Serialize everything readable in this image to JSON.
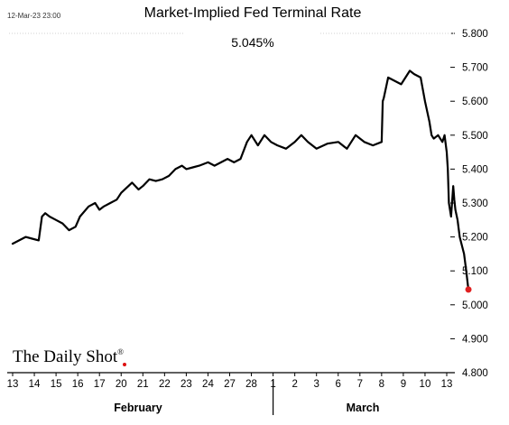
{
  "chart_data": {
    "type": "line",
    "title": "Market-Implied Fed Terminal Rate",
    "timestamp": "12-Mar-23 23:00",
    "annotation": "5.045%",
    "brand": "The Daily Shot",
    "brand_mark": "®",
    "xlabel": "",
    "ylabel": "",
    "ylim": [
      4.8,
      5.8
    ],
    "yticks": [
      4.8,
      4.9,
      5.0,
      5.1,
      5.2,
      5.3,
      5.4,
      5.5,
      5.6,
      5.7,
      5.8
    ],
    "ytick_labels": [
      "4.800",
      "4.900",
      "5.000",
      "5.100",
      "5.200",
      "5.300",
      "5.400",
      "5.500",
      "5.600",
      "5.700",
      "5.800"
    ],
    "xtick_labels": [
      "13",
      "14",
      "15",
      "16",
      "17",
      "20",
      "21",
      "22",
      "23",
      "24",
      "27",
      "28",
      "1",
      "2",
      "3",
      "6",
      "7",
      "8",
      "9",
      "10",
      "13"
    ],
    "month_labels": [
      "February",
      "March"
    ],
    "grid": false,
    "series": [
      {
        "color": "#000000",
        "x": [
          0,
          0.3,
          0.6,
          0.9,
          1.2,
          1.35,
          1.5,
          1.7,
          2.0,
          2.3,
          2.6,
          2.9,
          3.1,
          3.5,
          3.8,
          4.0,
          4.2,
          4.5,
          4.8,
          5.0,
          5.5,
          5.8,
          6.0,
          6.3,
          6.6,
          6.9,
          7.2,
          7.5,
          7.8,
          8.0,
          8.3,
          8.6,
          9.0,
          9.3,
          9.6,
          9.9,
          10.2,
          10.5,
          10.8,
          11.0,
          11.3,
          11.6,
          11.9,
          12.2,
          12.6,
          13.0,
          13.3,
          13.6,
          14.0,
          14.5,
          15.0,
          15.4,
          15.8,
          16.2,
          16.6,
          17.0,
          17.05,
          17.1,
          17.3,
          17.6,
          17.9,
          18.1,
          18.3,
          18.5,
          18.8,
          19.0,
          19.2,
          19.3,
          19.4,
          19.6,
          19.8,
          19.9,
          20.0,
          20.05,
          20.1,
          20.2,
          20.3,
          20.35,
          20.4,
          20.5,
          20.6,
          20.8,
          20.9,
          21.0
        ],
        "y": [
          5.18,
          5.19,
          5.2,
          5.195,
          5.19,
          5.26,
          5.27,
          5.26,
          5.25,
          5.24,
          5.22,
          5.23,
          5.26,
          5.29,
          5.3,
          5.28,
          5.29,
          5.3,
          5.31,
          5.33,
          5.36,
          5.34,
          5.35,
          5.37,
          5.365,
          5.37,
          5.38,
          5.4,
          5.41,
          5.4,
          5.405,
          5.41,
          5.42,
          5.41,
          5.42,
          5.43,
          5.42,
          5.43,
          5.48,
          5.5,
          5.47,
          5.5,
          5.48,
          5.47,
          5.46,
          5.48,
          5.5,
          5.48,
          5.46,
          5.475,
          5.48,
          5.46,
          5.5,
          5.48,
          5.47,
          5.48,
          5.6,
          5.61,
          5.67,
          5.66,
          5.65,
          5.67,
          5.69,
          5.68,
          5.67,
          5.6,
          5.54,
          5.5,
          5.49,
          5.5,
          5.48,
          5.5,
          5.45,
          5.4,
          5.3,
          5.26,
          5.35,
          5.31,
          5.28,
          5.25,
          5.2,
          5.15,
          5.1,
          5.045
        ]
      }
    ]
  }
}
